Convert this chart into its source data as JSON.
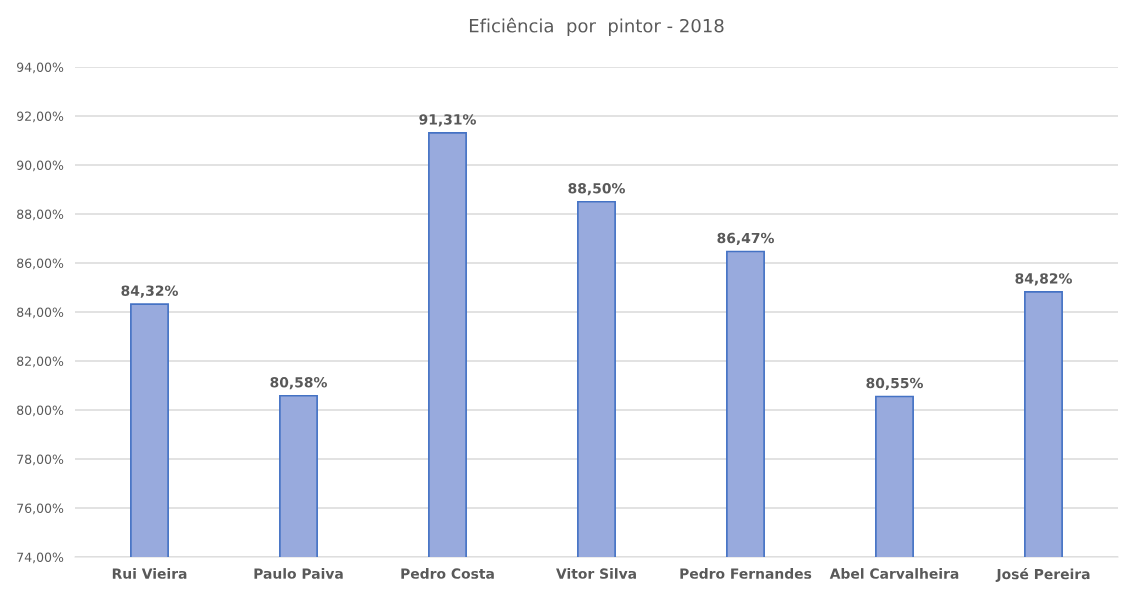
{
  "chart_data": {
    "type": "bar",
    "title": "Eficiência  por  pintor - 2018",
    "categories": [
      "Rui Vieira",
      "Paulo Paiva",
      "Pedro Costa",
      "Vitor Silva",
      "Pedro Fernandes",
      "Abel Carvalheira",
      "José Pereira"
    ],
    "values": [
      84.32,
      80.58,
      91.31,
      88.5,
      86.47,
      80.55,
      84.82
    ],
    "value_labels": [
      "84,32%",
      "80,58%",
      "91,31%",
      "88,50%",
      "86,47%",
      "80,55%",
      "84,82%"
    ],
    "color": "#98aadd",
    "ylim": [
      74,
      94
    ],
    "yticks": [
      {
        "value": 74,
        "label": "74,00%"
      },
      {
        "value": 76,
        "label": "76,00%"
      },
      {
        "value": 78,
        "label": "78,00%"
      },
      {
        "value": 80,
        "label": "80,00%"
      },
      {
        "value": 82,
        "label": "82,00%"
      },
      {
        "value": 84,
        "label": "84,00%"
      },
      {
        "value": 86,
        "label": "86,00%"
      },
      {
        "value": 88,
        "label": "88,00%"
      },
      {
        "value": 90,
        "label": "90,00%"
      },
      {
        "value": 92,
        "label": "92,00%"
      },
      {
        "value": 94,
        "label": "94,00%"
      }
    ],
    "grid": "y",
    "legend": false
  }
}
